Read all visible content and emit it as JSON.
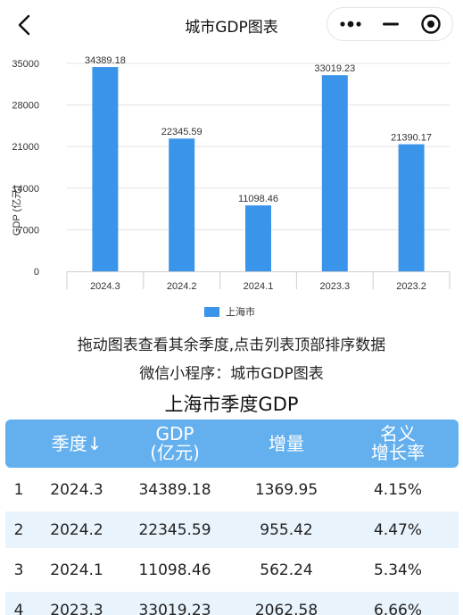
{
  "titlebar": {
    "back_icon": "chevron-left-icon",
    "title": "城市GDP图表",
    "more_icon": "more-dots-icon",
    "minimize_icon": "minimize-icon",
    "close_icon": "target-close-icon"
  },
  "chart_data": {
    "type": "bar",
    "categories": [
      "2024.3",
      "2024.2",
      "2024.1",
      "2023.3",
      "2023.2"
    ],
    "series": [
      {
        "name": "上海市",
        "values": [
          34389.18,
          22345.59,
          11098.46,
          33019.23,
          21390.17
        ]
      }
    ],
    "value_labels": [
      "34389.18",
      "22345.59",
      "11098.46",
      "33019.23",
      "21390.17"
    ],
    "ylabel": "GDP (亿元)",
    "xlabel": "",
    "ylim": [
      0,
      35000
    ],
    "yticks": [
      0,
      7000,
      14000,
      21000,
      28000,
      35000
    ],
    "grid": true,
    "legend": "bottom",
    "bar_color": "#3a94ea"
  },
  "hints": {
    "line1": "拖动图表查看其余季度,点击列表顶部排序数据",
    "line2": "微信小程序：城市GDP图表"
  },
  "table": {
    "title": "上海市季度GDP",
    "headers": {
      "season": "季度↓",
      "gdp_line1": "GDP",
      "gdp_line2": "(亿元)",
      "growth": "增量",
      "rate_line1": "名义",
      "rate_line2": "增长率"
    },
    "rows": [
      {
        "rank": "1",
        "season": "2024.3",
        "gdp": "34389.18",
        "growth": "1369.95",
        "rate": "4.15%"
      },
      {
        "rank": "2",
        "season": "2024.2",
        "gdp": "22345.59",
        "growth": "955.42",
        "rate": "4.47%"
      },
      {
        "rank": "3",
        "season": "2024.1",
        "gdp": "11098.46",
        "growth": "562.24",
        "rate": "5.34%"
      },
      {
        "rank": "4",
        "season": "2023.3",
        "gdp": "33019.23",
        "growth": "2062.58",
        "rate": "6.66%"
      }
    ]
  },
  "colors": {
    "accent": "#3a94ea",
    "header_bg": "#64b0ee",
    "stripe_bg": "#e9f3fb"
  }
}
